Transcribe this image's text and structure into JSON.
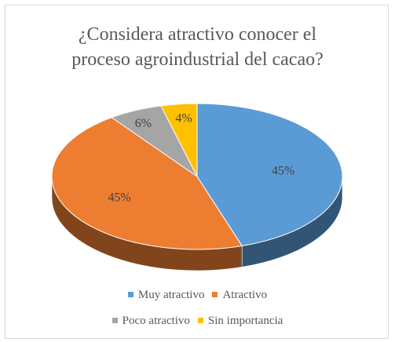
{
  "chart_data": {
    "type": "pie",
    "title": "¿Considera  atractivo conocer el proceso agroindustrial del cacao?",
    "title_lines": [
      "¿Considera  atractivo conocer el",
      "proceso agroindustrial del cacao?"
    ],
    "style": "3d",
    "legend_position": "bottom",
    "categories": [
      "Muy atractivo",
      "Atractivo",
      "Poco atractivo",
      "Sin importancia"
    ],
    "values": [
      45,
      45,
      6,
      4
    ],
    "labels": [
      "45%",
      "45%",
      "6%",
      "4%"
    ],
    "colors": [
      "#5b9bd5",
      "#ed7d31",
      "#a5a5a5",
      "#ffc000"
    ]
  }
}
